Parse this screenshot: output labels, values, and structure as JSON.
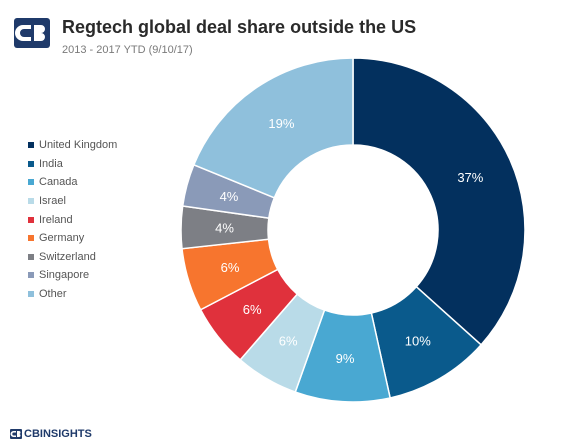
{
  "brand": {
    "name": "CBINSIGHTS"
  },
  "chart_data": {
    "type": "pie",
    "title": "Regtech global deal share outside the US",
    "subtitle": "2013 - 2017 YTD (9/10/17)",
    "donut": true,
    "legend_position": "left",
    "slices": [
      {
        "name": "United Kingdom",
        "value": 37,
        "label": "37%",
        "color": "#03305e",
        "label_color": "#ffffff"
      },
      {
        "name": "India",
        "value": 10,
        "label": "10%",
        "color": "#0a5a8c",
        "label_color": "#ffffff"
      },
      {
        "name": "Canada",
        "value": 9,
        "label": "9%",
        "color": "#49a8d2",
        "label_color": "#ffffff"
      },
      {
        "name": "Israel",
        "value": 6,
        "label": "6%",
        "color": "#b9dbe8",
        "label_color": "#ffffff"
      },
      {
        "name": "Ireland",
        "value": 6,
        "label": "6%",
        "color": "#e0313c",
        "label_color": "#ffffff"
      },
      {
        "name": "Germany",
        "value": 6,
        "label": "6%",
        "color": "#f7752e",
        "label_color": "#ffffff"
      },
      {
        "name": "Switzerland",
        "value": 4,
        "label": "4%",
        "color": "#7d7f85",
        "label_color": "#ffffff"
      },
      {
        "name": "Singapore",
        "value": 4,
        "label": "4%",
        "color": "#8a9ab8",
        "label_color": "#ffffff"
      },
      {
        "name": "Other",
        "value": 19,
        "label": "19%",
        "color": "#8fc0dc",
        "label_color": "#ffffff"
      }
    ]
  }
}
